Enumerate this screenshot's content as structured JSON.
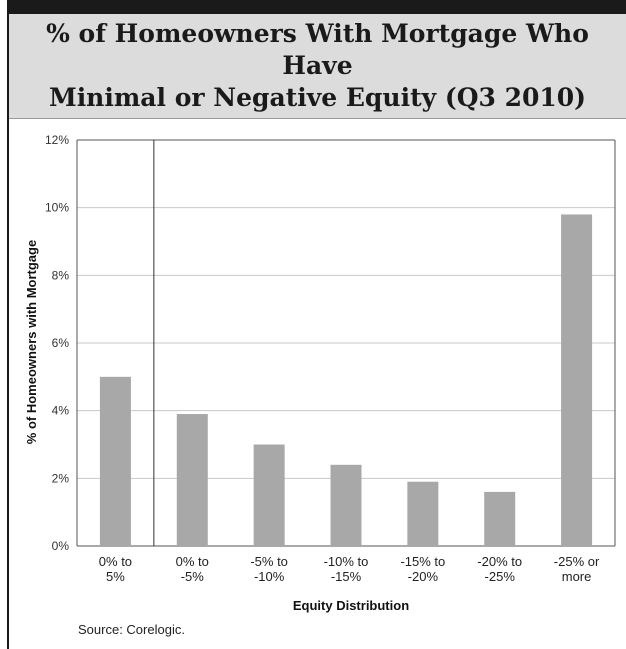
{
  "title": "% of Homeowners With Mortgage Who Have\nMinimal or Negative Equity (Q3 2010)",
  "source": "Source: Corelogic.",
  "colors": {
    "bar": "#a8a8a8",
    "grid": "#c8c8c8",
    "title_band": "#dcdcdc"
  },
  "chart_data": {
    "type": "bar",
    "title": "% of Homeowners With Mortgage Who Have Minimal or Negative Equity (Q3 2010)",
    "xlabel": "Equity Distribution",
    "ylabel": "% of Homeowners with Mortgage",
    "categories": [
      "0% to\n5%",
      "0% to\n-5%",
      "-5% to\n-10%",
      "-10% to\n-15%",
      "-15% to\n-20%",
      "-20% to\n-25%",
      "-25% or\nmore"
    ],
    "values": [
      5.0,
      3.9,
      3.0,
      2.4,
      1.9,
      1.6,
      9.8
    ],
    "ylim": [
      0,
      12
    ],
    "yticks": [
      "0%",
      "2%",
      "4%",
      "6%",
      "8%",
      "10%",
      "12%"
    ],
    "grid": true,
    "legend": "none"
  }
}
